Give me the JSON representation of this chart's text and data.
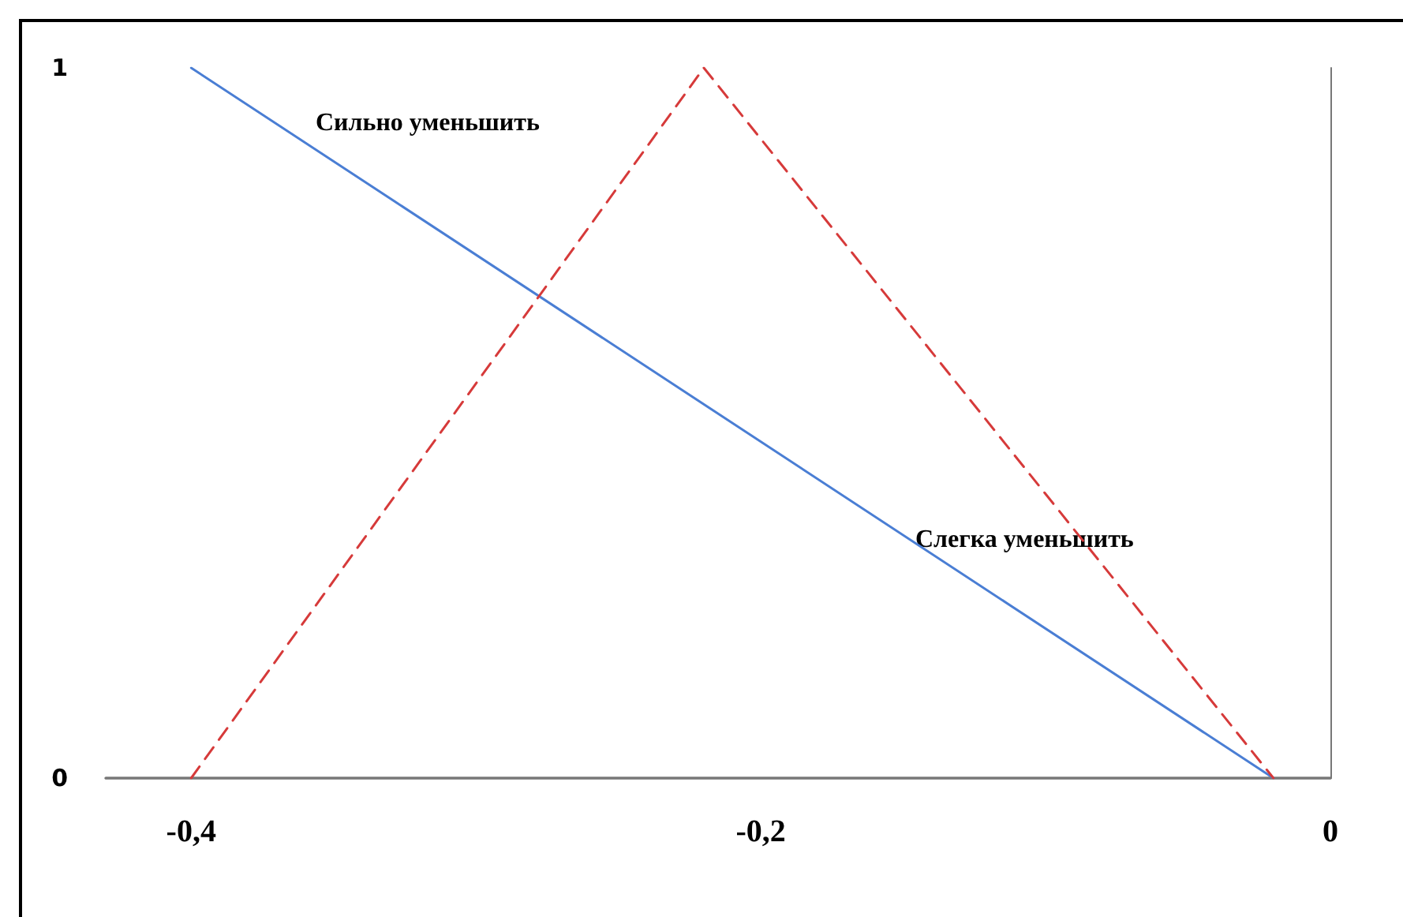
{
  "chart_data": {
    "type": "line",
    "series": [
      {
        "color": "#4a7ed4",
        "x": [
          -0.4,
          -0.02
        ],
        "values": [
          1,
          0
        ],
        "line_style": "solid"
      },
      {
        "color": "#d63a3a",
        "x": [
          -0.4,
          -0.22,
          -0.02
        ],
        "values": [
          0,
          1,
          0
        ],
        "line_style": "dashed"
      }
    ],
    "annotations": [
      "Сильно уменьшить",
      "Слегка уменьшить"
    ],
    "xlim": [
      -0.43,
      0
    ],
    "xticks": [
      {
        "value": -0.4,
        "label": "-0,4"
      },
      {
        "value": -0.2,
        "label": "-0,2"
      },
      {
        "value": 0,
        "label": "0"
      }
    ],
    "ylim": [
      0,
      1
    ],
    "yticks": [
      0,
      1
    ],
    "marker": "none"
  }
}
